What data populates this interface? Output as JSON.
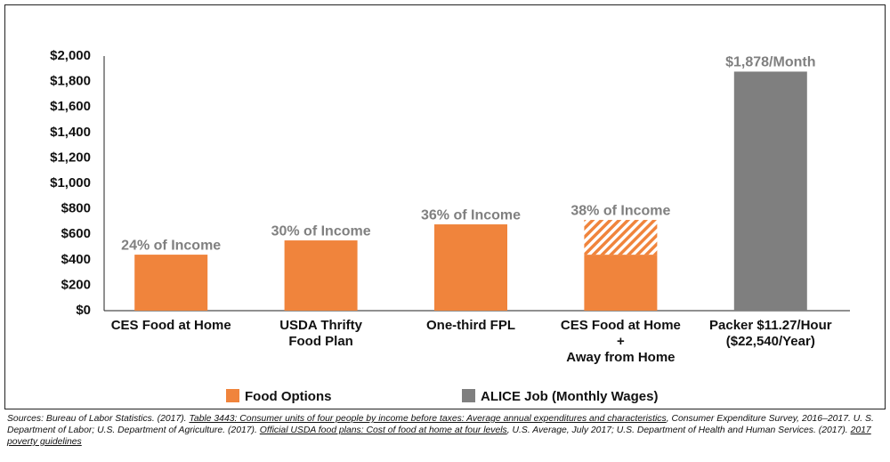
{
  "chart_data": {
    "type": "bar",
    "categories": [
      [
        "CES Food at Home"
      ],
      [
        "USDA Thrifty",
        "Food Plan"
      ],
      [
        "One-third FPL"
      ],
      [
        "CES Food at Home",
        "+",
        "Away from Home"
      ],
      [
        "Packer $11.27/Hour",
        "($22,540/Year)"
      ]
    ],
    "series": [
      {
        "name": "Food Options",
        "color": "#f0843c",
        "values": [
          440,
          552,
          678,
          440,
          null
        ],
        "hatched_values": [
          null,
          null,
          null,
          273,
          null
        ]
      },
      {
        "name": "ALICE Job (Monthly Wages)",
        "color": "#7f7f7f",
        "values": [
          null,
          null,
          null,
          null,
          1878
        ],
        "value_labels": [
          null,
          null,
          null,
          null,
          "$1,878/Month"
        ]
      }
    ],
    "annotations": [
      "24% of Income",
      "30% of Income",
      "36% of Income",
      "38% of Income",
      null
    ],
    "ylim": [
      0,
      2000
    ],
    "yticks": [
      {
        "value": 0,
        "label": "$0"
      },
      {
        "value": 200,
        "label": "$200"
      },
      {
        "value": 400,
        "label": "$400"
      },
      {
        "value": 600,
        "label": "$600"
      },
      {
        "value": 800,
        "label": "$800"
      },
      {
        "value": 1000,
        "label": "$1,000"
      },
      {
        "value": 1200,
        "label": "$1,200"
      },
      {
        "value": 1400,
        "label": "$1,400"
      },
      {
        "value": 1600,
        "label": "$1,600"
      },
      {
        "value": 1800,
        "label": "$1,800"
      },
      {
        "value": 2000,
        "label": "$2,000"
      }
    ],
    "grid": false,
    "legend": "bottom"
  },
  "source": [
    {
      "text": "Sources: Bureau of Labor Statistics. (2017). ",
      "link": false
    },
    {
      "text": "Table 3443: Consumer units of four people by income before taxes: Average annual expenditures and characteristics",
      "link": true
    },
    {
      "text": ", Consumer Expenditure Survey, 2016–2017. U. S. Department of Labor; U.S. Department of Agriculture. (2017). ",
      "link": false
    },
    {
      "text": "Official USDA food plans: Cost of food at home at four levels",
      "link": true
    },
    {
      "text": ", U.S. Average, July 2017; U.S. Department of Health and Human Services. (2017). ",
      "link": false
    },
    {
      "text": "2017 poverty guidelines",
      "link": true
    }
  ]
}
